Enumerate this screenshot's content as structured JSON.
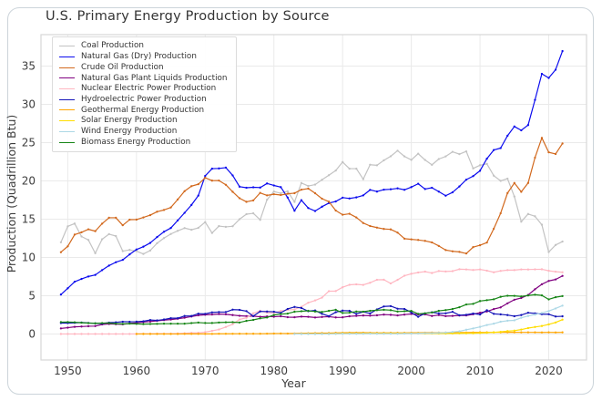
{
  "chart_data": {
    "type": "line",
    "title": "U.S. Primary Energy Production by Source",
    "xlabel": "Year",
    "ylabel": "Production (Quadrillion Btu)",
    "unit": "Quadrillion Btu",
    "grid": true,
    "legend_position": "upper left",
    "xticks": [
      1950,
      1960,
      1970,
      1980,
      1990,
      2000,
      2010,
      2020
    ],
    "yticks": [
      0,
      5,
      10,
      15,
      20,
      25,
      30,
      35
    ],
    "xlim": [
      1946.1,
      2025.5
    ],
    "ylim": [
      -3.4,
      39.1
    ],
    "axis_colors": {
      "grid": "#eaeaea",
      "spine": "#d7d7d7",
      "tick_text": "#3d3d3d",
      "title_text": "#343434"
    },
    "years": [
      1949,
      1950,
      1951,
      1952,
      1953,
      1954,
      1955,
      1956,
      1957,
      1958,
      1959,
      1960,
      1961,
      1962,
      1963,
      1964,
      1965,
      1966,
      1967,
      1968,
      1969,
      1970,
      1971,
      1972,
      1973,
      1974,
      1975,
      1976,
      1977,
      1978,
      1979,
      1980,
      1981,
      1982,
      1983,
      1984,
      1985,
      1986,
      1987,
      1988,
      1989,
      1990,
      1991,
      1992,
      1993,
      1994,
      1995,
      1996,
      1997,
      1998,
      1999,
      2000,
      2001,
      2002,
      2003,
      2004,
      2005,
      2006,
      2007,
      2008,
      2009,
      2010,
      2011,
      2012,
      2013,
      2014,
      2015,
      2016,
      2017,
      2018,
      2019,
      2020,
      2021,
      2022
    ],
    "series": [
      {
        "id": "coal",
        "name": "Coal Production",
        "color": "#c3c3c3",
        "values": [
          11.97,
          14.06,
          14.42,
          12.73,
          12.28,
          10.54,
          12.37,
          13.04,
          12.79,
          10.82,
          10.98,
          10.82,
          10.45,
          10.9,
          11.85,
          12.52,
          13.06,
          13.47,
          13.83,
          13.61,
          13.86,
          14.61,
          13.19,
          14.09,
          13.99,
          14.07,
          14.99,
          15.65,
          15.76,
          14.91,
          17.54,
          18.6,
          18.38,
          18.64,
          17.25,
          19.72,
          19.33,
          19.51,
          20.14,
          20.74,
          21.35,
          22.46,
          21.59,
          21.59,
          20.22,
          22.11,
          22.03,
          22.68,
          23.21,
          23.94,
          23.19,
          22.74,
          23.55,
          22.73,
          22.09,
          22.85,
          23.19,
          23.79,
          23.49,
          23.85,
          21.62,
          22.04,
          22.22,
          20.68,
          20.0,
          20.29,
          17.95,
          14.67,
          15.67,
          15.37,
          14.27,
          10.7,
          11.62,
          12.07
        ]
      },
      {
        "id": "natural-gas-dry",
        "name": "Natural Gas (Dry) Production",
        "color": "#0b0bee",
        "values": [
          5.15,
          5.97,
          6.82,
          7.19,
          7.51,
          7.71,
          8.34,
          8.93,
          9.37,
          9.68,
          10.39,
          11.03,
          11.4,
          11.89,
          12.66,
          13.35,
          13.84,
          14.83,
          15.83,
          16.85,
          18.07,
          20.65,
          21.59,
          21.62,
          21.73,
          20.71,
          19.24,
          19.1,
          19.16,
          19.12,
          19.66,
          19.4,
          19.18,
          17.82,
          16.1,
          17.47,
          16.45,
          16.06,
          16.62,
          17.1,
          17.31,
          17.81,
          17.7,
          17.84,
          18.1,
          18.82,
          18.6,
          18.85,
          18.9,
          19.02,
          18.83,
          19.18,
          19.62,
          18.93,
          19.1,
          18.59,
          18.06,
          18.5,
          19.27,
          20.16,
          20.62,
          21.32,
          22.9,
          24.03,
          24.28,
          25.89,
          27.1,
          26.6,
          27.29,
          30.57,
          33.98,
          33.44,
          34.52,
          36.95
        ]
      },
      {
        "id": "crude-oil",
        "name": "Crude Oil Production",
        "color": "#d2691e",
        "values": [
          10.68,
          11.45,
          12.98,
          13.28,
          13.67,
          13.43,
          14.41,
          15.18,
          15.18,
          14.2,
          14.93,
          14.94,
          15.22,
          15.52,
          15.97,
          16.2,
          16.52,
          17.57,
          18.65,
          19.31,
          19.56,
          20.4,
          20.03,
          20.04,
          19.49,
          18.57,
          17.73,
          17.26,
          17.45,
          18.43,
          18.1,
          18.25,
          18.15,
          18.31,
          18.39,
          18.85,
          18.99,
          18.38,
          17.67,
          17.28,
          16.12,
          15.57,
          15.7,
          15.22,
          14.49,
          14.1,
          13.89,
          13.72,
          13.66,
          13.24,
          12.45,
          12.36,
          12.28,
          12.16,
          11.96,
          11.5,
          10.96,
          10.8,
          10.72,
          10.51,
          11.34,
          11.59,
          11.94,
          13.74,
          15.77,
          18.4,
          19.72,
          18.57,
          19.72,
          23.03,
          25.61,
          23.73,
          23.51,
          24.88
        ]
      },
      {
        "id": "natural-gas-plant-liquids",
        "name": "Natural Gas Plant Liquids Production",
        "color": "#800080",
        "values": [
          0.72,
          0.82,
          0.93,
          0.97,
          1.01,
          1.03,
          1.24,
          1.31,
          1.28,
          1.26,
          1.38,
          1.46,
          1.55,
          1.62,
          1.72,
          1.81,
          1.88,
          1.99,
          2.12,
          2.28,
          2.43,
          2.51,
          2.54,
          2.6,
          2.57,
          2.47,
          2.37,
          2.33,
          2.33,
          2.25,
          2.29,
          2.25,
          2.31,
          2.19,
          2.18,
          2.27,
          2.24,
          2.15,
          2.22,
          2.26,
          2.16,
          2.17,
          2.31,
          2.36,
          2.41,
          2.39,
          2.44,
          2.53,
          2.5,
          2.42,
          2.53,
          2.61,
          2.55,
          2.56,
          2.35,
          2.47,
          2.33,
          2.36,
          2.41,
          2.42,
          2.57,
          2.78,
          2.93,
          3.25,
          3.47,
          4.0,
          4.47,
          4.7,
          5.09,
          5.84,
          6.49,
          6.93,
          7.12,
          7.58
        ]
      },
      {
        "id": "nuclear",
        "name": "Nuclear Electric Power Production",
        "color": "#ffb6c1",
        "values": [
          0,
          0,
          0,
          0,
          0,
          0,
          0,
          0,
          0.0,
          0.0,
          0.0,
          0.01,
          0.02,
          0.03,
          0.04,
          0.04,
          0.04,
          0.06,
          0.09,
          0.14,
          0.15,
          0.24,
          0.41,
          0.58,
          0.91,
          1.27,
          1.9,
          2.11,
          2.7,
          3.02,
          2.78,
          2.74,
          3.01,
          3.13,
          3.2,
          3.55,
          4.08,
          4.38,
          4.75,
          5.59,
          5.6,
          6.1,
          6.42,
          6.48,
          6.41,
          6.69,
          7.08,
          7.09,
          6.6,
          7.07,
          7.61,
          7.86,
          8.03,
          8.14,
          7.96,
          8.22,
          8.16,
          8.21,
          8.46,
          8.43,
          8.36,
          8.43,
          8.27,
          8.06,
          8.24,
          8.34,
          8.34,
          8.43,
          8.42,
          8.44,
          8.45,
          8.25,
          8.13,
          8.06
        ]
      },
      {
        "id": "hydroelectric",
        "name": "Hydroelectric Power Production",
        "color": "#1414b8",
        "values": [
          1.42,
          1.42,
          1.45,
          1.5,
          1.44,
          1.39,
          1.36,
          1.48,
          1.52,
          1.6,
          1.59,
          1.61,
          1.66,
          1.82,
          1.77,
          1.89,
          2.06,
          2.06,
          2.35,
          2.35,
          2.65,
          2.63,
          2.82,
          2.86,
          2.86,
          3.18,
          3.15,
          2.98,
          2.33,
          2.94,
          2.93,
          2.9,
          2.76,
          3.27,
          3.53,
          3.39,
          2.97,
          3.07,
          2.63,
          2.33,
          2.84,
          3.05,
          3.02,
          2.62,
          2.89,
          2.68,
          3.21,
          3.59,
          3.64,
          3.3,
          3.27,
          2.81,
          2.24,
          2.69,
          2.83,
          2.69,
          2.7,
          2.89,
          2.45,
          2.51,
          2.67,
          2.54,
          3.1,
          2.63,
          2.56,
          2.47,
          2.32,
          2.47,
          2.77,
          2.69,
          2.58,
          2.58,
          2.28,
          2.31
        ]
      },
      {
        "id": "geothermal",
        "name": "Geothermal Energy Production",
        "color": "#ffa500",
        "values": [
          null,
          null,
          null,
          null,
          null,
          null,
          null,
          null,
          null,
          null,
          null,
          0.0,
          0.0,
          0.0,
          0.0,
          0.0,
          0.0,
          0.0,
          0.01,
          0.01,
          0.01,
          0.01,
          0.01,
          0.02,
          0.02,
          0.02,
          0.03,
          0.03,
          0.03,
          0.03,
          0.04,
          0.05,
          0.06,
          0.05,
          0.07,
          0.08,
          0.1,
          0.11,
          0.12,
          0.12,
          0.15,
          0.16,
          0.17,
          0.17,
          0.17,
          0.16,
          0.15,
          0.15,
          0.15,
          0.15,
          0.15,
          0.16,
          0.16,
          0.17,
          0.18,
          0.18,
          0.18,
          0.18,
          0.19,
          0.19,
          0.2,
          0.21,
          0.21,
          0.21,
          0.21,
          0.22,
          0.22,
          0.21,
          0.21,
          0.21,
          0.2,
          0.21,
          0.2,
          0.21
        ]
      },
      {
        "id": "solar",
        "name": "Solar Energy Production",
        "color": "#ffdd00",
        "values": [
          null,
          null,
          null,
          null,
          null,
          null,
          null,
          null,
          null,
          null,
          null,
          null,
          null,
          null,
          null,
          null,
          null,
          null,
          null,
          null,
          null,
          null,
          null,
          null,
          null,
          null,
          null,
          null,
          null,
          null,
          null,
          null,
          null,
          null,
          null,
          0.0,
          0.0,
          0.0,
          0.0,
          0.0,
          0.03,
          0.06,
          0.06,
          0.06,
          0.07,
          0.07,
          0.07,
          0.07,
          0.07,
          0.07,
          0.07,
          0.06,
          0.07,
          0.06,
          0.06,
          0.06,
          0.06,
          0.07,
          0.08,
          0.09,
          0.1,
          0.13,
          0.16,
          0.21,
          0.28,
          0.37,
          0.43,
          0.57,
          0.77,
          0.91,
          1.04,
          1.25,
          1.5,
          1.87
        ]
      },
      {
        "id": "wind",
        "name": "Wind Energy Production",
        "color": "#add8e6",
        "values": [
          null,
          null,
          null,
          null,
          null,
          null,
          null,
          null,
          null,
          null,
          null,
          null,
          null,
          null,
          null,
          null,
          null,
          null,
          null,
          null,
          null,
          null,
          null,
          null,
          null,
          null,
          null,
          null,
          null,
          null,
          null,
          null,
          null,
          null,
          0.0,
          0.0,
          0.0,
          0.0,
          0.0,
          0.0,
          0.02,
          0.03,
          0.03,
          0.03,
          0.03,
          0.04,
          0.03,
          0.03,
          0.03,
          0.03,
          0.05,
          0.06,
          0.07,
          0.11,
          0.11,
          0.14,
          0.18,
          0.26,
          0.34,
          0.55,
          0.72,
          0.92,
          1.17,
          1.34,
          1.6,
          1.73,
          1.78,
          2.11,
          2.35,
          2.53,
          2.74,
          2.99,
          3.33,
          3.7
        ]
      },
      {
        "id": "biomass",
        "name": "Biomass Energy Production",
        "color": "#168516",
        "values": [
          1.55,
          1.56,
          1.53,
          1.47,
          1.42,
          1.39,
          1.42,
          1.42,
          1.35,
          1.32,
          1.35,
          1.32,
          1.29,
          1.3,
          1.32,
          1.34,
          1.34,
          1.34,
          1.34,
          1.42,
          1.49,
          1.43,
          1.43,
          1.5,
          1.53,
          1.54,
          1.5,
          1.71,
          1.84,
          2.04,
          2.15,
          2.48,
          2.59,
          2.66,
          2.9,
          2.97,
          3.02,
          2.93,
          2.87,
          3.02,
          3.16,
          2.74,
          2.78,
          2.93,
          2.91,
          3.03,
          3.1,
          3.16,
          3.11,
          2.93,
          2.97,
          3.01,
          2.62,
          2.7,
          2.81,
          3.02,
          3.12,
          3.26,
          3.49,
          3.85,
          3.93,
          4.3,
          4.41,
          4.53,
          4.85,
          4.99,
          4.98,
          4.9,
          5.02,
          5.13,
          5.04,
          4.52,
          4.8,
          4.95
        ]
      }
    ]
  }
}
